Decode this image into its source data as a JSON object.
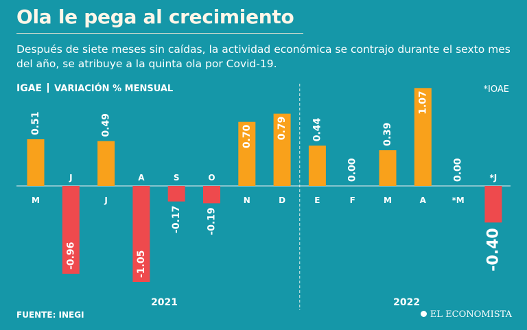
{
  "header": {
    "title": "Ola le pega al crecimiento",
    "subtitle": "Después de siete meses sin caídas, la actividad económica se contrajo durante el sexto mes del año, se atribuye a la quinta ola por Covid-19."
  },
  "chart_data": {
    "type": "bar",
    "title": "Ola le pega al crecimiento",
    "ylabel_main": "IGAE",
    "ylabel_sub": "VARIACIÓN % MENSUAL",
    "note": "*IOAE",
    "categories": [
      "M",
      "J",
      "J",
      "A",
      "S",
      "O",
      "N",
      "D",
      "E",
      "F",
      "M",
      "A",
      "*M",
      "*J"
    ],
    "values": [
      0.51,
      -0.96,
      0.49,
      -1.05,
      -0.17,
      -0.19,
      0.7,
      0.79,
      0.44,
      0.0,
      0.39,
      1.07,
      0.0,
      -0.4
    ],
    "value_labels": [
      "0.51",
      "-0.96",
      "0.49",
      "-1.05",
      "-0.17",
      "-0.19",
      "0.70",
      "0.79",
      "0.44",
      "0.00",
      "0.39",
      "1.07",
      "0.00",
      "-0.40"
    ],
    "highlight_index": 13,
    "years": [
      "2021",
      "2022"
    ],
    "year_split_after_index": 7,
    "colors": {
      "positive": "#f9a11b",
      "negative": "#ee4a4d",
      "background": "#1597a8"
    },
    "ylim": [
      -1.05,
      1.07
    ]
  },
  "footer": {
    "source": "FUENTE: INEGI",
    "brand": "EL ECONOMISTA"
  }
}
